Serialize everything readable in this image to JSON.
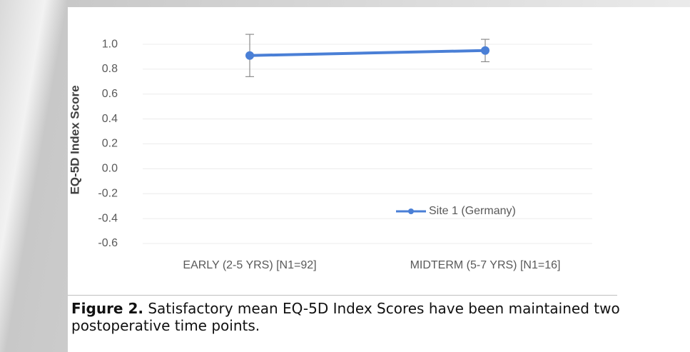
{
  "chart_data": {
    "type": "line",
    "y_label": "EQ-5D Index Score",
    "categories": [
      "EARLY (2-5 YRS) [N1=92]",
      "MIDTERM (5-7 YRS) [N1=16]"
    ],
    "series": [
      {
        "name": "Site 1 (Germany)",
        "color": "#4a7fd6",
        "values": [
          0.91,
          0.95
        ],
        "errors": [
          0.17,
          0.09
        ]
      }
    ],
    "ylim": [
      -0.6,
      1.1
    ],
    "yticks": [
      -0.6,
      -0.4,
      -0.2,
      {
        "value": 0,
        "label": "0.0"
      },
      0.2,
      0.4,
      0.6,
      0.8,
      {
        "value": 1,
        "label": "1.0"
      }
    ],
    "grid": true,
    "legend": "lower right"
  },
  "caption": {
    "label": "Figure 2.",
    "text": "Satisfactory mean EQ-5D Index Scores have been maintained two postoperative time points."
  }
}
